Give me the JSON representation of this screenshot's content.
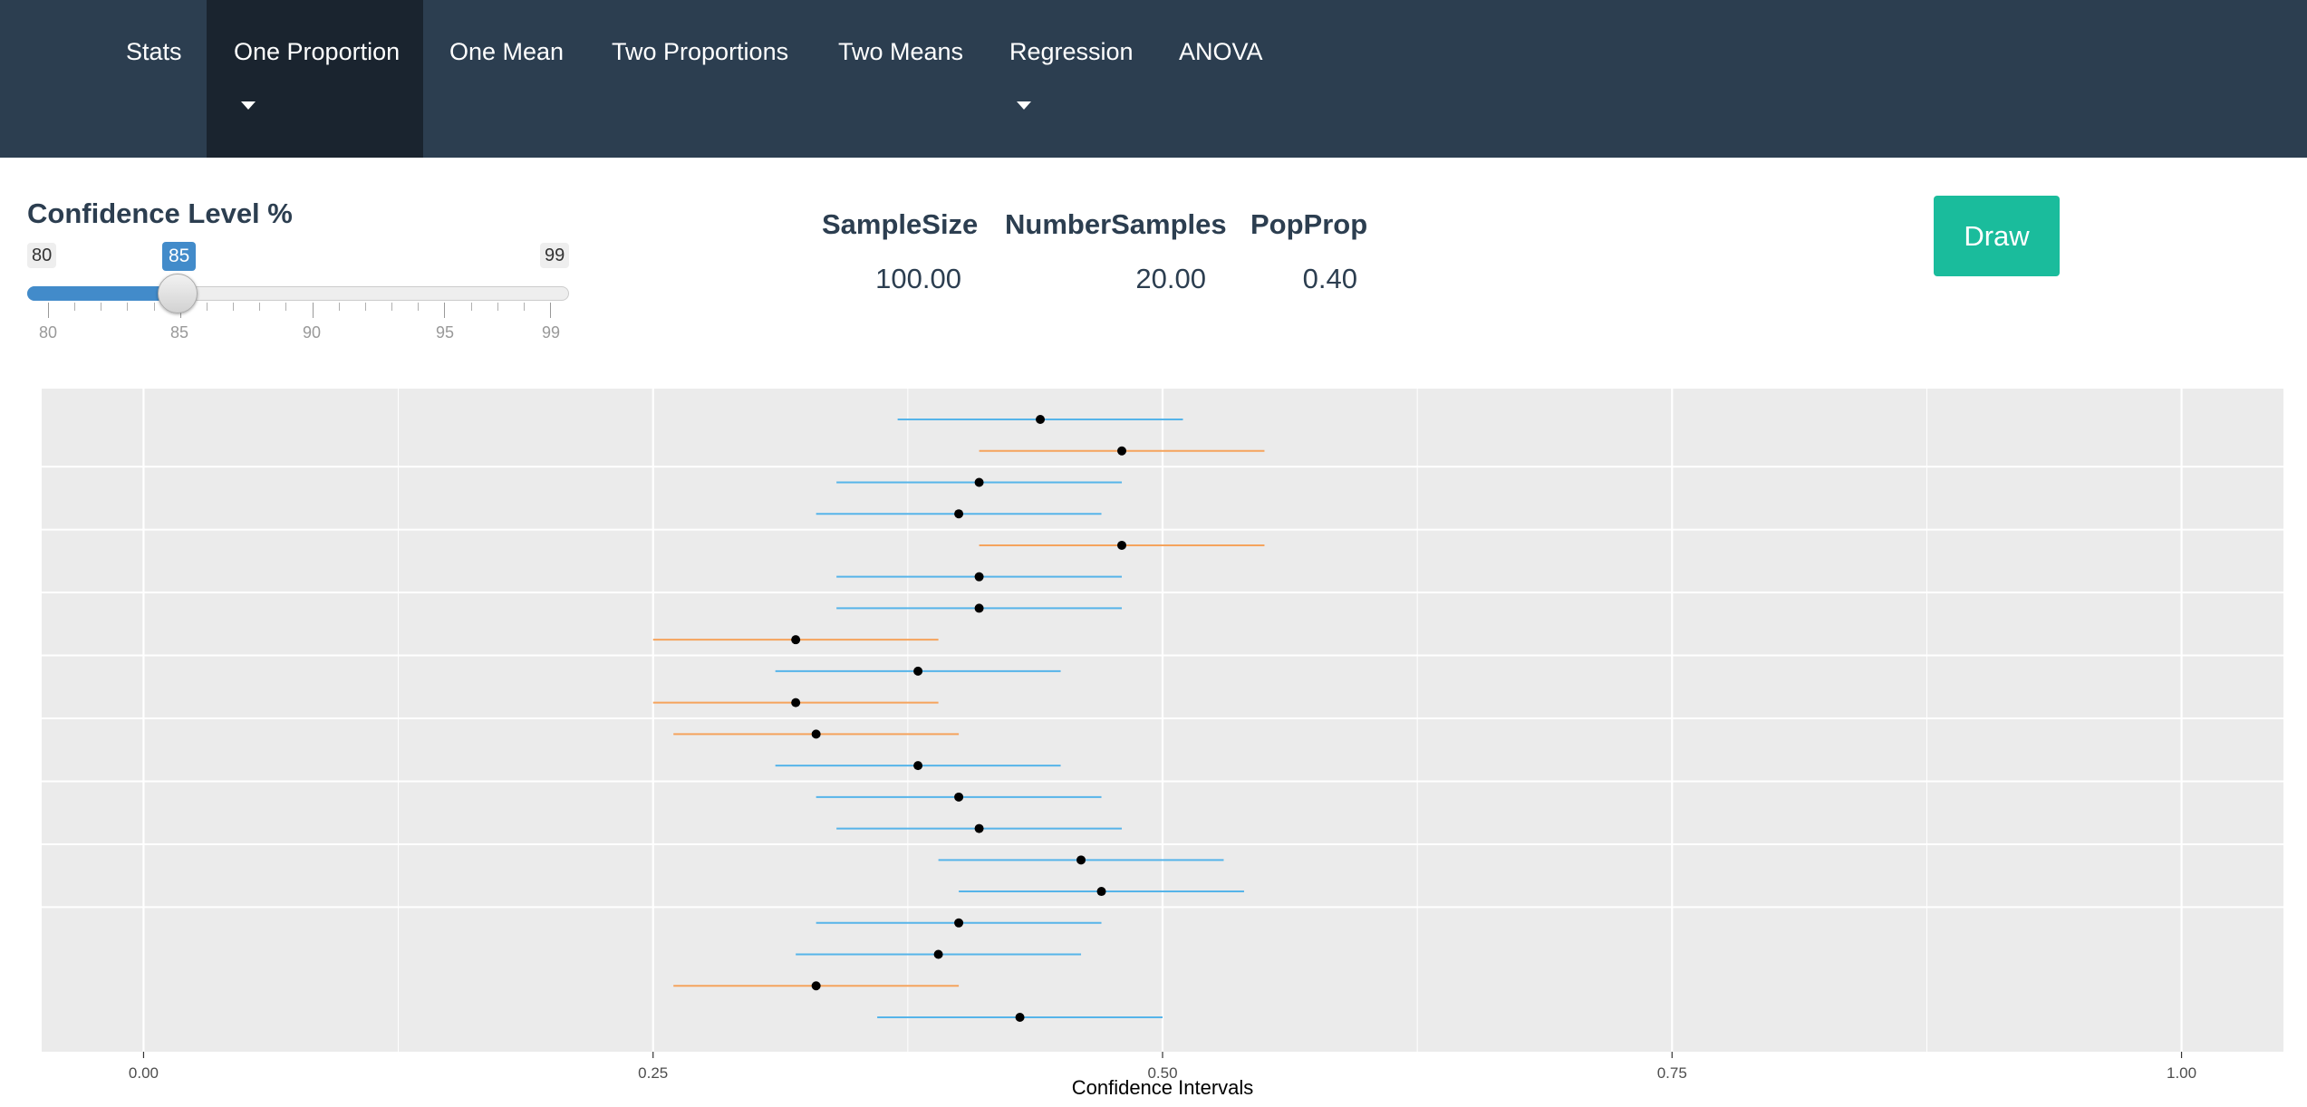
{
  "navbar": {
    "items": [
      {
        "label": "Stats"
      },
      {
        "label": "One Proportion"
      },
      {
        "label": "One Mean"
      },
      {
        "label": "Two Proportions"
      },
      {
        "label": "Two Means"
      },
      {
        "label": "Regression"
      },
      {
        "label": "ANOVA"
      }
    ],
    "active_index": 1
  },
  "slider": {
    "label": "Confidence Level %",
    "min": "80",
    "max": "99",
    "value": "85",
    "tick_labels": [
      "80",
      "85",
      "90",
      "95",
      "99"
    ],
    "fill_color": "#428bca"
  },
  "stats": {
    "sample_size_label": "SampleSize",
    "sample_size_value": "100.00",
    "number_samples_label": "NumberSamples",
    "number_samples_value": "20.00",
    "pop_prop_label": "PopProp",
    "pop_prop_value": "0.40"
  },
  "draw_button": {
    "label": "Draw",
    "color": "#1abc9c"
  },
  "chart_data": {
    "type": "scatter",
    "xlabel": "Confidence Intervals",
    "ylabel": "",
    "xlim": [
      -0.05,
      1.05
    ],
    "x_ticks": [
      "0.00",
      "0.25",
      "0.50",
      "0.75",
      "1.00"
    ],
    "grid": true,
    "colors": {
      "covers": "#56b4e9",
      "misses": "#f5a35c",
      "point": "#000000"
    },
    "intervals": [
      {
        "lower": 0.37,
        "estimate": 0.44,
        "upper": 0.51,
        "covers": true
      },
      {
        "lower": 0.41,
        "estimate": 0.48,
        "upper": 0.55,
        "covers": false
      },
      {
        "lower": 0.34,
        "estimate": 0.41,
        "upper": 0.48,
        "covers": true
      },
      {
        "lower": 0.33,
        "estimate": 0.4,
        "upper": 0.47,
        "covers": true
      },
      {
        "lower": 0.41,
        "estimate": 0.48,
        "upper": 0.55,
        "covers": false
      },
      {
        "lower": 0.34,
        "estimate": 0.41,
        "upper": 0.48,
        "covers": true
      },
      {
        "lower": 0.34,
        "estimate": 0.41,
        "upper": 0.48,
        "covers": true
      },
      {
        "lower": 0.25,
        "estimate": 0.32,
        "upper": 0.39,
        "covers": false
      },
      {
        "lower": 0.31,
        "estimate": 0.38,
        "upper": 0.45,
        "covers": true
      },
      {
        "lower": 0.25,
        "estimate": 0.32,
        "upper": 0.39,
        "covers": false
      },
      {
        "lower": 0.26,
        "estimate": 0.33,
        "upper": 0.4,
        "covers": false
      },
      {
        "lower": 0.31,
        "estimate": 0.38,
        "upper": 0.45,
        "covers": true
      },
      {
        "lower": 0.33,
        "estimate": 0.4,
        "upper": 0.47,
        "covers": true
      },
      {
        "lower": 0.34,
        "estimate": 0.41,
        "upper": 0.48,
        "covers": true
      },
      {
        "lower": 0.39,
        "estimate": 0.46,
        "upper": 0.53,
        "covers": true
      },
      {
        "lower": 0.4,
        "estimate": 0.47,
        "upper": 0.54,
        "covers": true
      },
      {
        "lower": 0.33,
        "estimate": 0.4,
        "upper": 0.47,
        "covers": true
      },
      {
        "lower": 0.32,
        "estimate": 0.39,
        "upper": 0.46,
        "covers": true
      },
      {
        "lower": 0.26,
        "estimate": 0.33,
        "upper": 0.4,
        "covers": false
      },
      {
        "lower": 0.36,
        "estimate": 0.43,
        "upper": 0.5,
        "covers": true
      }
    ]
  }
}
